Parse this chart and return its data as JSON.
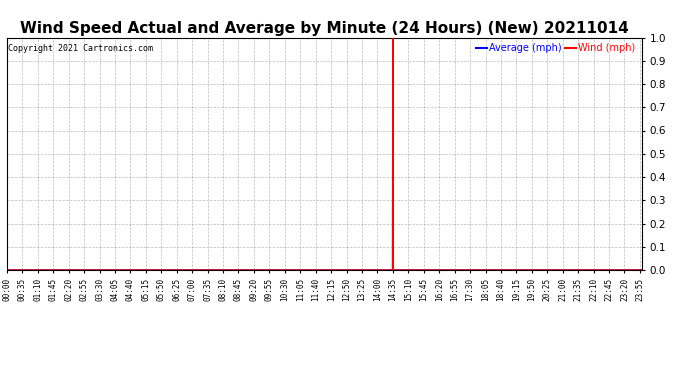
{
  "title": "Wind Speed Actual and Average by Minute (24 Hours) (New) 20211014",
  "copyright_text": "Copyright 2021 Cartronics.com",
  "legend_average_label": "Average (mph)",
  "legend_wind_label": "Wind (mph)",
  "legend_average_color": "#0000ff",
  "legend_wind_color": "#ff0000",
  "ylim": [
    0.0,
    1.0
  ],
  "yticks": [
    0.0,
    0.1,
    0.2,
    0.3,
    0.4,
    0.5,
    0.6,
    0.7,
    0.8,
    0.9,
    1.0
  ],
  "background_color": "#ffffff",
  "grid_color": "#aaaaaa",
  "average_line_color": "#0000ff",
  "wind_line_color": "#ff0000",
  "total_minutes": 1440,
  "spike_minute": 875,
  "tick_interval": 35,
  "title_fontsize": 11,
  "tick_label_fontsize": 5.5,
  "ytick_label_fontsize": 7.5
}
